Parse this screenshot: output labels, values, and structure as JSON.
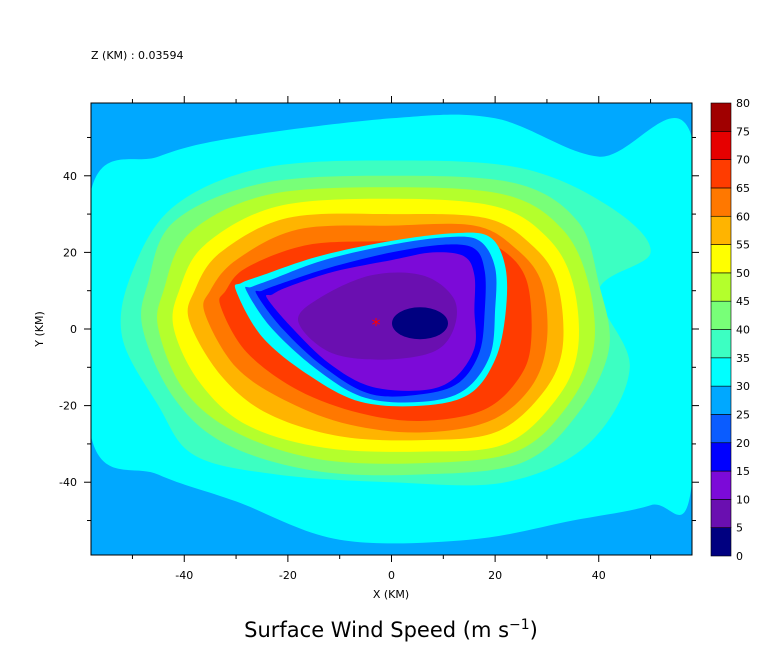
{
  "chart_data": {
    "type": "heatmap",
    "header": "Z (KM) : 0.03594",
    "title": "Surface Wind Speed (m s",
    "title_superscript": "−1",
    "title_close": ")",
    "xlabel": "X (KM)",
    "ylabel": "Y (KM)",
    "xlim": [
      -58,
      58
    ],
    "ylim": [
      -59,
      59
    ],
    "xticks": [
      -40,
      -20,
      0,
      20,
      40
    ],
    "yticks": [
      -40,
      -20,
      0,
      20,
      40
    ],
    "color_levels": [
      0,
      5,
      10,
      15,
      20,
      25,
      30,
      35,
      40,
      45,
      50,
      55,
      60,
      65,
      70,
      75,
      80
    ],
    "colors": [
      "#000080",
      "#6a0fb0",
      "#7c0ad8",
      "#0000ff",
      "#0a5cff",
      "#00a8ff",
      "#00ffff",
      "#3cffc2",
      "#78ff78",
      "#b4ff2c",
      "#ffff00",
      "#ffb400",
      "#ff7800",
      "#ff3c00",
      "#e60000",
      "#a00000"
    ],
    "center_marker": {
      "x": -3,
      "y": 1,
      "symbol": "*",
      "color": "#ff0000"
    },
    "eye_minimum": {
      "x": 5.5,
      "y": 1.5,
      "value_range": "0-5"
    },
    "rings": [
      {
        "level": 30,
        "points": [
          [
            -58,
            -28
          ],
          [
            -45,
            -38
          ],
          [
            -30,
            -45
          ],
          [
            -10,
            -55
          ],
          [
            15,
            -55
          ],
          [
            35,
            -50
          ],
          [
            50,
            -46
          ],
          [
            58,
            -40
          ],
          [
            58,
            50
          ],
          [
            40,
            45
          ],
          [
            20,
            55
          ],
          [
            0,
            55
          ],
          [
            -30,
            50
          ],
          [
            -45,
            45
          ],
          [
            -58,
            36
          ]
        ]
      },
      {
        "level": 35,
        "points": [
          [
            -52,
            -2
          ],
          [
            -45,
            -20
          ],
          [
            -38,
            -33
          ],
          [
            -22,
            -38
          ],
          [
            0,
            -40
          ],
          [
            22,
            -40
          ],
          [
            38,
            -30
          ],
          [
            46,
            -10
          ],
          [
            40,
            10
          ],
          [
            50,
            20
          ],
          [
            42,
            32
          ],
          [
            25,
            42
          ],
          [
            0,
            44
          ],
          [
            -25,
            42
          ],
          [
            -42,
            32
          ],
          [
            -50,
            15
          ]
        ]
      },
      {
        "level": 40,
        "points": [
          [
            -48,
            0
          ],
          [
            -42,
            -18
          ],
          [
            -32,
            -30
          ],
          [
            -15,
            -37
          ],
          [
            5,
            -38
          ],
          [
            25,
            -35
          ],
          [
            36,
            -22
          ],
          [
            42,
            -5
          ],
          [
            40,
            12
          ],
          [
            36,
            28
          ],
          [
            24,
            38
          ],
          [
            0,
            40
          ],
          [
            -25,
            38
          ],
          [
            -42,
            28
          ],
          [
            -47,
            12
          ]
        ]
      },
      {
        "level": 45,
        "points": [
          [
            -45,
            0
          ],
          [
            -40,
            -16
          ],
          [
            -30,
            -27
          ],
          [
            -14,
            -34
          ],
          [
            6,
            -35
          ],
          [
            24,
            -32
          ],
          [
            34,
            -20
          ],
          [
            39,
            -5
          ],
          [
            38,
            12
          ],
          [
            33,
            26
          ],
          [
            22,
            35
          ],
          [
            0,
            37
          ],
          [
            -24,
            35
          ],
          [
            -39,
            25
          ],
          [
            -44,
            10
          ]
        ]
      },
      {
        "level": 50,
        "points": [
          [
            -42,
            0
          ],
          [
            -37,
            -14
          ],
          [
            -28,
            -25
          ],
          [
            -13,
            -31
          ],
          [
            6,
            -32
          ],
          [
            22,
            -30
          ],
          [
            32,
            -18
          ],
          [
            36,
            -5
          ],
          [
            35,
            12
          ],
          [
            30,
            24
          ],
          [
            20,
            32
          ],
          [
            0,
            34
          ],
          [
            -22,
            32
          ],
          [
            -36,
            22
          ],
          [
            -41,
            10
          ]
        ]
      },
      {
        "level": 55,
        "points": [
          [
            -39,
            2
          ],
          [
            -33,
            -12
          ],
          [
            -24,
            -22
          ],
          [
            -10,
            -28
          ],
          [
            6,
            -29
          ],
          [
            20,
            -27
          ],
          [
            29,
            -17
          ],
          [
            33,
            -5
          ],
          [
            32,
            12
          ],
          [
            27,
            22
          ],
          [
            18,
            29
          ],
          [
            0,
            30
          ],
          [
            -20,
            29
          ],
          [
            -33,
            20
          ],
          [
            -38,
            10
          ]
        ]
      },
      {
        "level": 60,
        "points": [
          [
            -36,
            4
          ],
          [
            -30,
            -10
          ],
          [
            -20,
            -19
          ],
          [
            -8,
            -25
          ],
          [
            6,
            -27
          ],
          [
            19,
            -24
          ],
          [
            27,
            -15
          ],
          [
            30,
            -3
          ],
          [
            29,
            12
          ],
          [
            24,
            21
          ],
          [
            16,
            27
          ],
          [
            0,
            27
          ],
          [
            -18,
            26
          ],
          [
            -30,
            18
          ],
          [
            -35,
            10
          ]
        ]
      },
      {
        "level": 65,
        "points": [
          [
            -33,
            6
          ],
          [
            -28,
            -6
          ],
          [
            -18,
            -16
          ],
          [
            -6,
            -22
          ],
          [
            6,
            -24
          ],
          [
            18,
            -21
          ],
          [
            25,
            -12
          ],
          [
            27,
            -2
          ],
          [
            26,
            13
          ],
          [
            21,
            21
          ],
          [
            14,
            24
          ],
          [
            0,
            23
          ],
          [
            -16,
            22
          ],
          [
            -28,
            16
          ],
          [
            -32,
            10
          ]
        ]
      },
      {
        "level": 30,
        "points": [
          [
            -30,
            10
          ],
          [
            -25,
            -2
          ],
          [
            -16,
            -12
          ],
          [
            -6,
            -19
          ],
          [
            6,
            -20
          ],
          [
            15,
            -17
          ],
          [
            20,
            -8
          ],
          [
            22,
            4
          ],
          [
            22,
            16
          ],
          [
            19,
            24
          ],
          [
            12,
            25
          ],
          [
            0,
            23
          ],
          [
            -14,
            19
          ],
          [
            -25,
            14
          ],
          [
            -29,
            12
          ]
        ]
      },
      {
        "level": 20,
        "points": [
          [
            -28,
            10
          ],
          [
            -23,
            0
          ],
          [
            -14,
            -11
          ],
          [
            -5,
            -18
          ],
          [
            6,
            -19
          ],
          [
            14,
            -16
          ],
          [
            19,
            -7
          ],
          [
            20,
            5
          ],
          [
            20,
            16
          ],
          [
            17,
            23
          ],
          [
            11,
            24
          ],
          [
            0,
            22
          ],
          [
            -13,
            18
          ],
          [
            -23,
            13
          ],
          [
            -27,
            11
          ]
        ]
      },
      {
        "level": 15,
        "points": [
          [
            -26,
            9
          ],
          [
            -21,
            0
          ],
          [
            -13,
            -10
          ],
          [
            -4,
            -17
          ],
          [
            6,
            -17
          ],
          [
            13,
            -14
          ],
          [
            17,
            -6
          ],
          [
            18,
            5
          ],
          [
            18,
            15
          ],
          [
            16,
            21
          ],
          [
            10,
            22
          ],
          [
            0,
            20
          ],
          [
            -12,
            16
          ],
          [
            -21,
            12
          ],
          [
            -25,
            10
          ]
        ]
      },
      {
        "level": 10,
        "points": [
          [
            -24,
            8
          ],
          [
            -19,
            0
          ],
          [
            -12,
            -9
          ],
          [
            -4,
            -15
          ],
          [
            6,
            -16
          ],
          [
            12,
            -13
          ],
          [
            16,
            -5
          ],
          [
            16,
            5
          ],
          [
            16,
            14
          ],
          [
            14,
            19
          ],
          [
            8,
            20
          ],
          [
            0,
            18
          ],
          [
            -11,
            15
          ],
          [
            -20,
            11
          ],
          [
            -23,
            9
          ]
        ]
      },
      {
        "level": 5,
        "points": [
          [
            -18,
            2
          ],
          [
            -12,
            -6
          ],
          [
            -2,
            -8
          ],
          [
            8,
            -6
          ],
          [
            12,
            0
          ],
          [
            12,
            8
          ],
          [
            6,
            14
          ],
          [
            -4,
            14
          ],
          [
            -14,
            8
          ]
        ]
      }
    ]
  }
}
